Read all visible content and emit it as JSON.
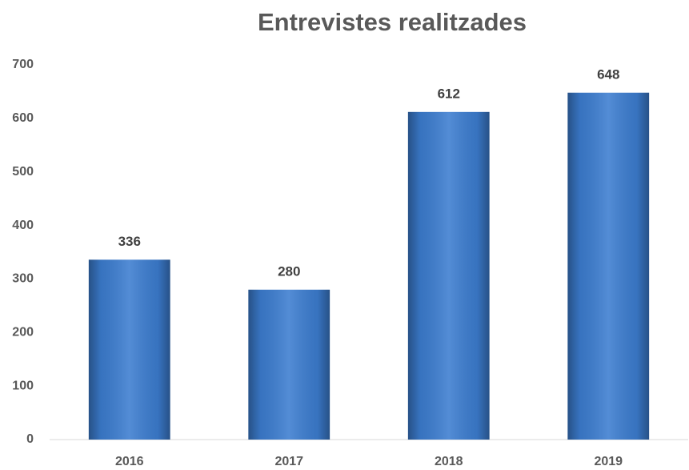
{
  "chart_data": {
    "type": "bar",
    "title": "Entrevistes realitzades",
    "categories": [
      "2016",
      "2017",
      "2018",
      "2019"
    ],
    "values": [
      336,
      280,
      612,
      648
    ],
    "color": "#3c7dd0",
    "ylim": [
      0,
      700
    ],
    "yticks": [
      0,
      100,
      200,
      300,
      400,
      500,
      600,
      700
    ],
    "grid": false
  }
}
